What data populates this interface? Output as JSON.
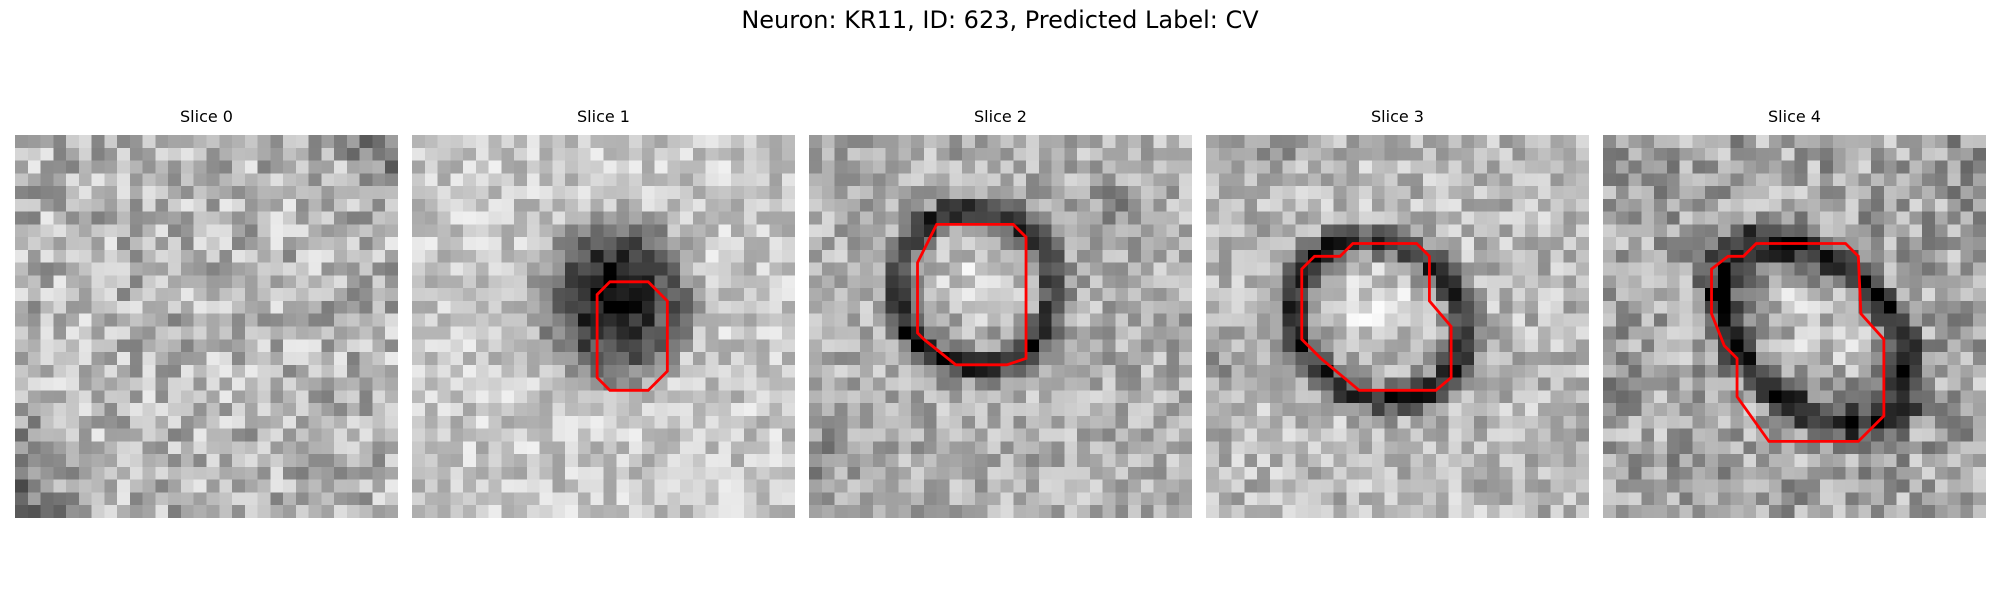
{
  "figure": {
    "title": "Neuron: KR11, ID: 623, Predicted Label: CV"
  },
  "colormap": "grayscale",
  "contour_color": "#ff0000",
  "panels": [
    {
      "title": "Slice 0"
    },
    {
      "title": "Slice 1"
    },
    {
      "title": "Slice 2"
    },
    {
      "title": "Slice 3"
    },
    {
      "title": "Slice 4"
    }
  ]
}
